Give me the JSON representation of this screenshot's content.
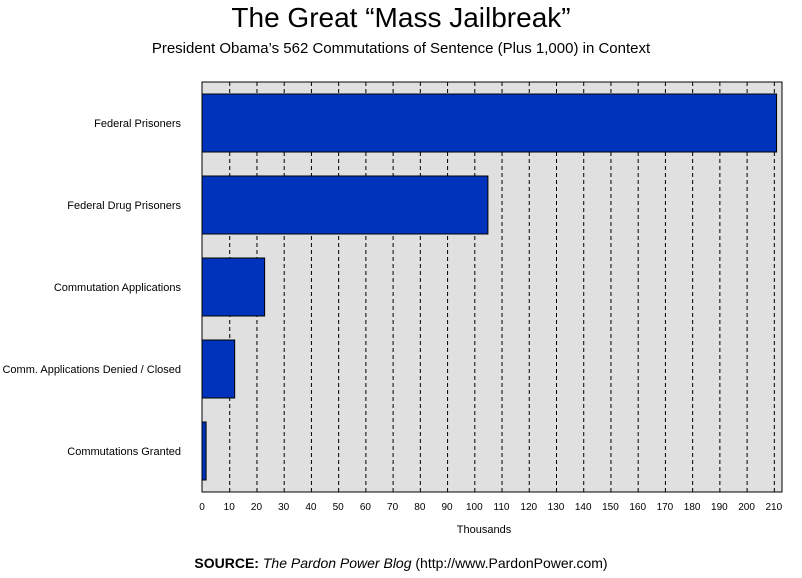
{
  "chart_data": {
    "type": "bar",
    "orientation": "horizontal",
    "title": "The Great “Mass Jailbreak”",
    "subtitle": "President Obama’s 562 Commutations of Sentence (Plus 1,000) in Context",
    "categories": [
      "Federal Prisoners",
      "Federal Drug Prisoners",
      "Commutation Applications",
      "Comm. Applications Denied / Closed",
      "Commutations Granted"
    ],
    "values": [
      211,
      105,
      23,
      12,
      1.5
    ],
    "xlabel": "Thousands",
    "xlim": [
      0,
      213
    ],
    "xticks": [
      0,
      10,
      20,
      30,
      40,
      50,
      60,
      70,
      80,
      90,
      100,
      110,
      120,
      130,
      140,
      150,
      160,
      170,
      180,
      190,
      200,
      210
    ],
    "grid": "vertical dashed",
    "bar_color": "#0033bb",
    "plot_background": "#e0e0e0"
  },
  "source": {
    "label": "SOURCE:",
    "name": "The Pardon Power Blog",
    "url": "(http://www.PardonPower.com)"
  }
}
